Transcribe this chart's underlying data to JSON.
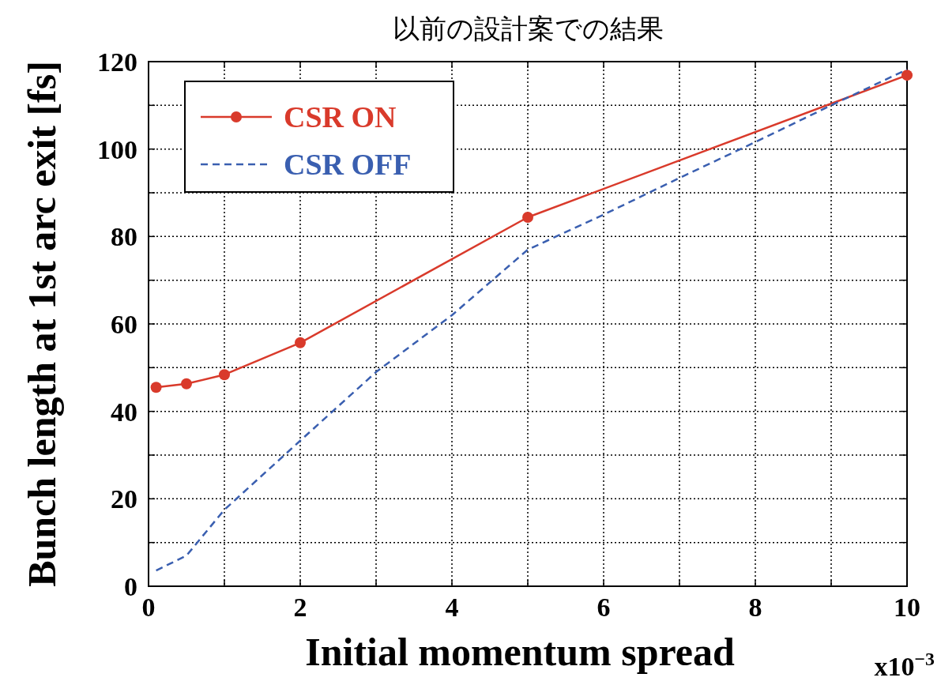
{
  "chart_data": {
    "type": "line",
    "title": "以前の設計案での結果",
    "xlabel": "Initial momentum spread",
    "ylabel": "Bunch length at 1st arc exit [fs]",
    "annotations": [
      "x10$^{−3}$"
    ],
    "xlim": [
      0,
      10
    ],
    "ylim": [
      0,
      120
    ],
    "xticks": [
      0,
      {
        "value": 1,
        "label": null
      },
      2,
      {
        "value": 3,
        "label": null
      },
      4,
      {
        "value": 5,
        "label": null
      },
      6,
      {
        "value": 7,
        "label": null
      },
      8,
      {
        "value": 9,
        "label": null
      },
      10
    ],
    "yticks": [
      0,
      {
        "value": 10,
        "label": null
      },
      20,
      {
        "value": 30,
        "label": null
      },
      40,
      {
        "value": 50,
        "label": null
      },
      60,
      {
        "value": 70,
        "label": null
      },
      80,
      {
        "value": 90,
        "label": null
      },
      100,
      {
        "value": 110,
        "label": null
      },
      120
    ],
    "grid": true,
    "legend": "top left",
    "series": [
      {
        "name": "CSR ON",
        "color": "#d93a2b",
        "marker": "circle",
        "line_style": "solid",
        "x": [
          0.1,
          0.5,
          1,
          2,
          5,
          10
        ],
        "values": [
          45.5,
          46.3,
          48.4,
          55.7,
          84.4,
          116.9
        ]
      },
      {
        "name": "CSR OFF",
        "color": "#3a5fb0",
        "marker": "none",
        "line_style": "dashed",
        "x": [
          0.1,
          0.5,
          1,
          2,
          3,
          4,
          5,
          6,
          7,
          8,
          9,
          10
        ],
        "values": [
          3.6,
          7,
          17.5,
          33.3,
          49,
          62,
          77,
          85,
          93.4,
          101.6,
          110,
          118.2
        ]
      }
    ]
  }
}
